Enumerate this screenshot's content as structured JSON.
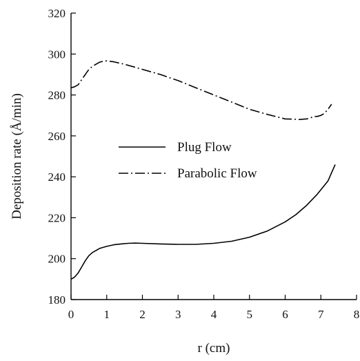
{
  "chart_data": {
    "type": "line",
    "title": "",
    "xlabel": "r (cm)",
    "ylabel": "Deposition rate (Å/min)",
    "xlim": [
      0,
      8
    ],
    "ylim": [
      180,
      320
    ],
    "xticks": [
      "0",
      "1",
      "2",
      "3",
      "4",
      "5",
      "6",
      "7",
      "8"
    ],
    "yticks": [
      "180",
      "200",
      "220",
      "240",
      "260",
      "280",
      "300",
      "320"
    ],
    "grid": false,
    "legend_position": "center",
    "series": [
      {
        "name": "Plug Flow",
        "style": "solid",
        "color": "#000000",
        "x": [
          0,
          0.1,
          0.2,
          0.3,
          0.4,
          0.5,
          0.6,
          0.8,
          1.0,
          1.2,
          1.4,
          1.6,
          1.8,
          2.0,
          2.5,
          3.0,
          3.5,
          4.0,
          4.5,
          5.0,
          5.5,
          6.0,
          6.3,
          6.6,
          6.9,
          7.2,
          7.4
        ],
        "y": [
          190,
          191,
          193,
          196,
          199,
          201.5,
          203,
          205,
          206,
          206.8,
          207.2,
          207.5,
          207.6,
          207.5,
          207.2,
          207,
          207,
          207.5,
          208.5,
          210.5,
          213.5,
          218,
          221.5,
          226,
          231.5,
          238,
          246
        ]
      },
      {
        "name": "Parabolic Flow",
        "style": "dashdot",
        "color": "#000000",
        "x": [
          0,
          0.1,
          0.2,
          0.3,
          0.4,
          0.5,
          0.6,
          0.7,
          0.8,
          0.9,
          1.0,
          1.2,
          1.5,
          2.0,
          2.5,
          3.0,
          3.5,
          4.0,
          4.5,
          5.0,
          5.5,
          6.0,
          6.2,
          6.4,
          6.6,
          6.7,
          6.8,
          6.9,
          7.0,
          7.1,
          7.2,
          7.3
        ],
        "y": [
          283.5,
          284,
          285,
          287.5,
          290,
          292.5,
          294,
          295,
          296,
          296.5,
          296.7,
          296.2,
          295,
          292.5,
          290,
          287,
          283.5,
          280,
          276.5,
          273,
          270.5,
          268.3,
          268.2,
          268,
          268.3,
          268.7,
          269.5,
          269.5,
          270,
          271,
          273,
          275.5
        ]
      }
    ]
  }
}
